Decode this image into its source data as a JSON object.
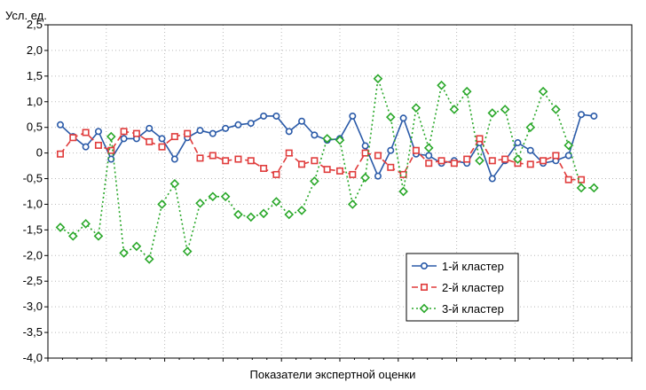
{
  "chart_data": {
    "type": "line",
    "title": "",
    "xlabel": "Показатели экспертной оценки",
    "ylabel": "Усл. ед.",
    "ylim": [
      -4.0,
      2.5
    ],
    "yticks": [
      "2,5",
      "2,0",
      "1,5",
      "1,0",
      "0,5",
      "0",
      "-0,5",
      "-1,0",
      "-1,5",
      "-2,0",
      "-2,5",
      "-3,0",
      "-3,5",
      "-4,0"
    ],
    "grid": true,
    "legend_position": "bottom-right",
    "x": [
      1,
      2,
      3,
      4,
      5,
      6,
      7,
      8,
      9,
      10,
      11,
      12,
      13,
      14,
      15,
      16,
      17,
      18,
      19,
      20,
      21,
      22,
      23,
      24,
      25,
      26,
      27,
      28,
      29,
      30,
      31,
      32,
      33,
      34,
      35,
      36,
      37,
      38,
      39,
      40,
      41,
      42,
      43,
      44,
      45
    ],
    "series": [
      {
        "name": "1-й кластер",
        "color": "#2a5aa8",
        "marker": "circle",
        "dash": "solid",
        "values": [
          0.55,
          0.32,
          0.12,
          0.42,
          -0.12,
          0.28,
          0.28,
          0.48,
          0.28,
          -0.12,
          0.3,
          0.44,
          0.38,
          0.48,
          0.55,
          0.58,
          0.72,
          0.72,
          0.42,
          0.62,
          0.35,
          0.25,
          0.28,
          0.72,
          0.14,
          -0.45,
          0.05,
          0.68,
          -0.02,
          -0.05,
          -0.2,
          -0.15,
          -0.2,
          0.2,
          -0.5,
          -0.15,
          0.2,
          0.05,
          -0.2,
          -0.15,
          -0.05,
          0.75,
          0.72,
          null,
          null
        ]
      },
      {
        "name": "2-й кластер",
        "color": "#e03c3c",
        "marker": "square",
        "dash": "dashed",
        "values": [
          -0.02,
          0.3,
          0.4,
          0.15,
          0.05,
          0.42,
          0.38,
          0.22,
          0.12,
          0.32,
          0.38,
          -0.1,
          -0.05,
          -0.15,
          -0.12,
          -0.15,
          -0.3,
          -0.42,
          0.0,
          -0.22,
          -0.15,
          -0.32,
          -0.35,
          -0.42,
          0.0,
          -0.05,
          -0.28,
          -0.42,
          0.05,
          -0.2,
          -0.15,
          -0.2,
          -0.12,
          0.28,
          -0.15,
          -0.12,
          -0.2,
          -0.22,
          -0.15,
          -0.05,
          -0.52,
          -0.52,
          null,
          null,
          null
        ]
      },
      {
        "name": "3-й кластер",
        "color": "#2aa82a",
        "marker": "diamond",
        "dash": "dotted",
        "values": [
          -1.45,
          -1.62,
          -1.38,
          -1.62,
          0.32,
          -1.95,
          -1.82,
          -2.07,
          -1.0,
          -0.6,
          -1.92,
          -0.98,
          -0.85,
          -0.85,
          -1.2,
          -1.25,
          -1.18,
          -0.95,
          -1.2,
          -1.12,
          -0.55,
          0.28,
          0.25,
          -1.0,
          -0.48,
          1.45,
          0.7,
          -0.75,
          0.88,
          0.1,
          1.32,
          0.85,
          1.2,
          -0.15,
          0.78,
          0.85,
          -0.12,
          0.5,
          1.2,
          0.85,
          0.15,
          -0.68,
          -0.68,
          null,
          null
        ]
      }
    ]
  }
}
